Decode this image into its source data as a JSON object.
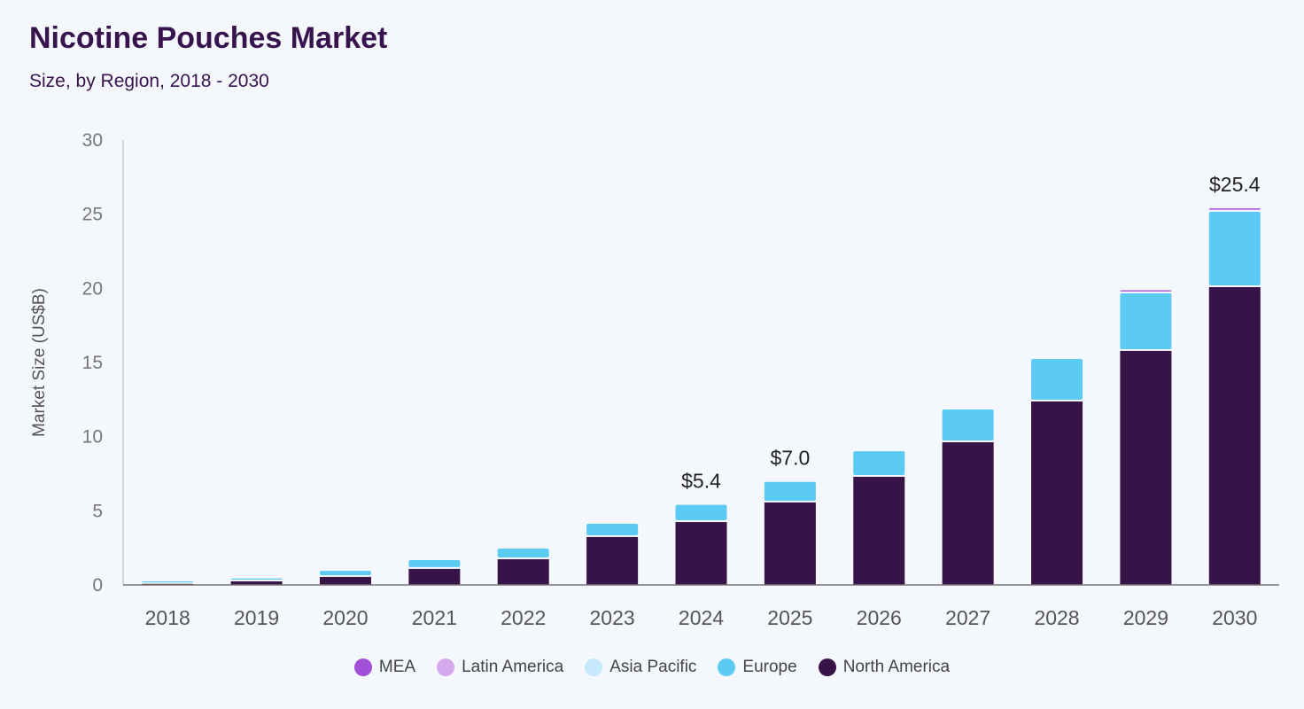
{
  "header": {
    "title": "Nicotine Pouches Market",
    "subtitle": "Size, by Region, 2018 - 2030"
  },
  "chart_data": {
    "type": "bar",
    "stacked": true,
    "title": "Nicotine Pouches Market",
    "subtitle": "Size, by Region, 2018 - 2030",
    "xlabel": "",
    "ylabel": "Market Size (US$B)",
    "ylim": [
      0,
      30
    ],
    "yticks": [
      0,
      5,
      10,
      15,
      20,
      25,
      30
    ],
    "grid": false,
    "legend_position": "bottom",
    "categories": [
      "2018",
      "2019",
      "2020",
      "2021",
      "2022",
      "2023",
      "2024",
      "2025",
      "2026",
      "2027",
      "2028",
      "2029",
      "2030"
    ],
    "series": [
      {
        "name": "North America",
        "color": "#371347",
        "values": [
          0.05,
          0.24,
          0.54,
          1.08,
          1.73,
          3.23,
          4.24,
          5.56,
          7.29,
          9.62,
          12.37,
          15.78,
          20.08
        ]
      },
      {
        "name": "Europe",
        "color": "#5ccbf4",
        "values": [
          0.03,
          0.16,
          0.41,
          0.59,
          0.72,
          0.89,
          1.16,
          1.39,
          1.73,
          2.21,
          2.87,
          3.88,
          5.08
        ]
      },
      {
        "name": "Asia Pacific",
        "color": "#c6eafc",
        "values": [
          0,
          0,
          0,
          0,
          0,
          0,
          0,
          0,
          0,
          0,
          0,
          0,
          0
        ]
      },
      {
        "name": "Latin America",
        "color": "#d6a8ef",
        "values": [
          0,
          0,
          0,
          0,
          0,
          0,
          0,
          0,
          0,
          0,
          0,
          0.02,
          0.04
        ]
      },
      {
        "name": "MEA",
        "color": "#a24fd8",
        "values": [
          0,
          0,
          0,
          0,
          0,
          0,
          0,
          0,
          0,
          0,
          0,
          0.1,
          0.15
        ]
      }
    ],
    "data_labels": [
      {
        "category": "2024",
        "text": "$5.4"
      },
      {
        "category": "2025",
        "text": "$7.0"
      },
      {
        "category": "2030",
        "text": "$25.4"
      }
    ]
  },
  "legend": [
    {
      "name": "MEA",
      "color": "#a24fd8"
    },
    {
      "name": "Latin America",
      "color": "#d6a8ef"
    },
    {
      "name": "Asia Pacific",
      "color": "#c6eafc"
    },
    {
      "name": "Europe",
      "color": "#5ccbf4"
    },
    {
      "name": "North America",
      "color": "#371347"
    }
  ]
}
